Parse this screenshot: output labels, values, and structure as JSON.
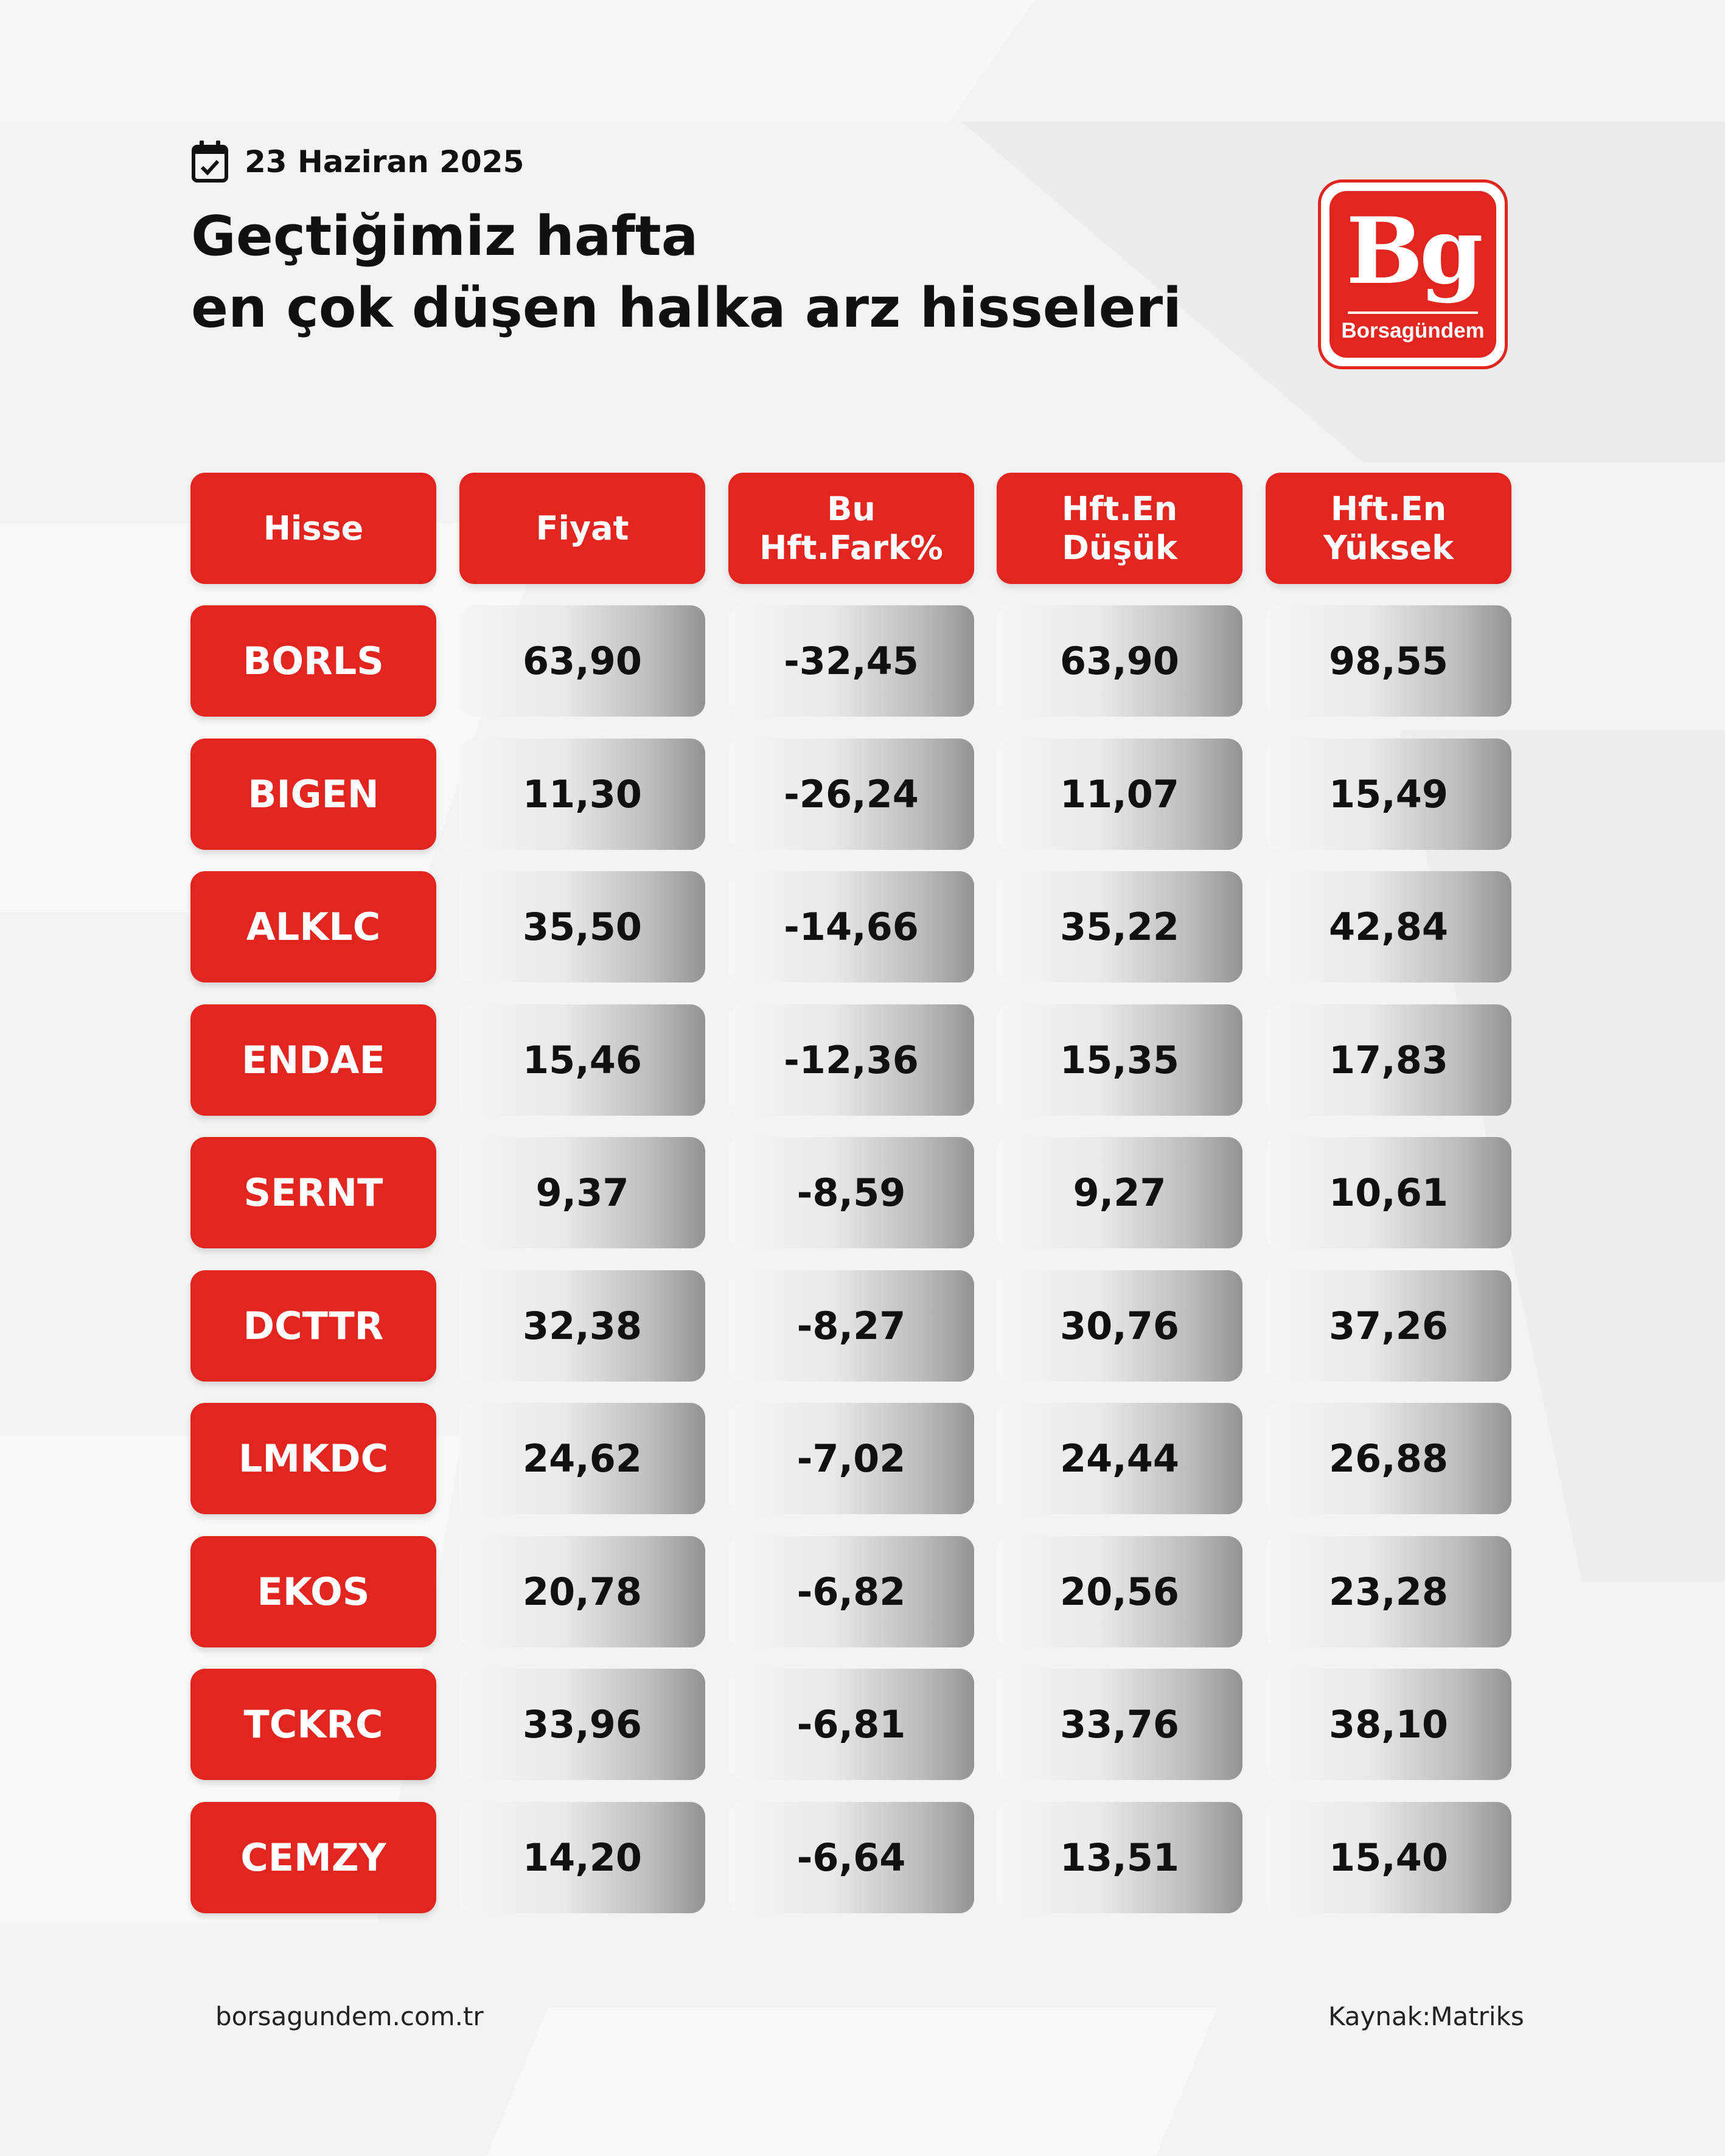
{
  "header": {
    "date": "23 Haziran 2025",
    "title_line1": "Geçtiğimiz hafta",
    "title_line2": "en çok düşen halka arz hisseleri",
    "calendar_icon": "calendar-check-icon"
  },
  "logo": {
    "mark": "Bg",
    "name": "Borsagündem",
    "color": "#e3251f"
  },
  "table": {
    "columns": [
      {
        "label": "Hisse"
      },
      {
        "label": "Fiyat"
      },
      {
        "label": "Bu\nHft.Fark%"
      },
      {
        "label": "Hft.En\nDüşük"
      },
      {
        "label": "Hft.En\nYüksek"
      }
    ],
    "rows": [
      {
        "ticker": "BORLS",
        "fiyat": "63,90",
        "fark": "-32,45",
        "dusuk": "63,90",
        "yuksek": "98,55"
      },
      {
        "ticker": "BIGEN",
        "fiyat": "11,30",
        "fark": "-26,24",
        "dusuk": "11,07",
        "yuksek": "15,49"
      },
      {
        "ticker": "ALKLC",
        "fiyat": "35,50",
        "fark": "-14,66",
        "dusuk": "35,22",
        "yuksek": "42,84"
      },
      {
        "ticker": "ENDAE",
        "fiyat": "15,46",
        "fark": "-12,36",
        "dusuk": "15,35",
        "yuksek": "17,83"
      },
      {
        "ticker": "SERNT",
        "fiyat": "9,37",
        "fark": "-8,59",
        "dusuk": "9,27",
        "yuksek": "10,61"
      },
      {
        "ticker": "DCTTR",
        "fiyat": "32,38",
        "fark": "-8,27",
        "dusuk": "30,76",
        "yuksek": "37,26"
      },
      {
        "ticker": "LMKDC",
        "fiyat": "24,62",
        "fark": "-7,02",
        "dusuk": "24,44",
        "yuksek": "26,88"
      },
      {
        "ticker": "EKOS",
        "fiyat": "20,78",
        "fark": "-6,82",
        "dusuk": "20,56",
        "yuksek": "23,28"
      },
      {
        "ticker": "TCKRC",
        "fiyat": "33,96",
        "fark": "-6,81",
        "dusuk": "33,76",
        "yuksek": "38,10"
      },
      {
        "ticker": "CEMZY",
        "fiyat": "14,20",
        "fark": "-6,64",
        "dusuk": "13,51",
        "yuksek": "15,40"
      }
    ]
  },
  "footer": {
    "website": "borsagundem.com.tr",
    "source": "Kaynak:Matriks"
  }
}
